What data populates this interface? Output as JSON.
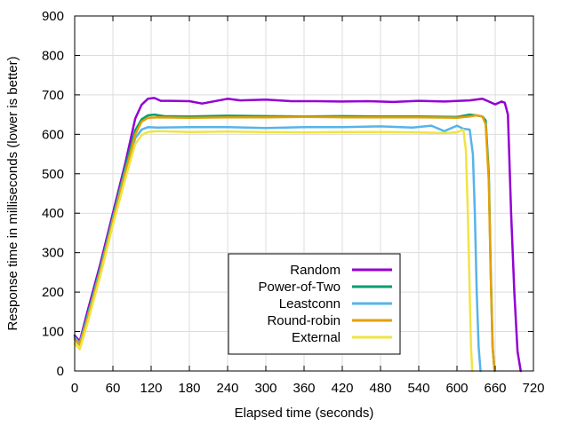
{
  "chart_data": {
    "type": "line",
    "xlabel": "Elapsed time (seconds)",
    "ylabel": "Response time in milliseconds (lower is better)",
    "xlim": [
      0,
      720
    ],
    "ylim": [
      0,
      900
    ],
    "xticks": [
      0,
      60,
      120,
      180,
      240,
      300,
      360,
      420,
      480,
      540,
      600,
      660,
      720
    ],
    "yticks": [
      0,
      100,
      200,
      300,
      400,
      500,
      600,
      700,
      800,
      900
    ],
    "grid": true,
    "legend_position": "bottom-center",
    "series": [
      {
        "name": "Random",
        "color": "#9400d3",
        "x": [
          0,
          8,
          20,
          40,
          60,
          80,
          95,
          105,
          115,
          125,
          135,
          150,
          180,
          200,
          240,
          260,
          300,
          340,
          380,
          420,
          460,
          500,
          540,
          580,
          620,
          640,
          650,
          660,
          670,
          675,
          680,
          685,
          690,
          695,
          700
        ],
        "y": [
          90,
          75,
          150,
          270,
          400,
          530,
          640,
          675,
          690,
          692,
          685,
          685,
          684,
          678,
          690,
          686,
          688,
          684,
          684,
          683,
          684,
          682,
          685,
          683,
          686,
          690,
          683,
          676,
          683,
          680,
          650,
          400,
          200,
          50,
          0
        ]
      },
      {
        "name": "Power-of-Two",
        "color": "#009e73",
        "x": [
          0,
          8,
          20,
          40,
          60,
          80,
          95,
          105,
          115,
          125,
          140,
          180,
          240,
          300,
          360,
          420,
          480,
          540,
          600,
          620,
          630,
          640,
          645,
          650,
          653,
          656,
          659
        ],
        "y": [
          85,
          70,
          140,
          260,
          390,
          520,
          610,
          638,
          648,
          650,
          646,
          645,
          647,
          646,
          645,
          646,
          645,
          645,
          644,
          650,
          648,
          645,
          635,
          500,
          250,
          60,
          0
        ]
      },
      {
        "name": "Leastconn",
        "color": "#56b4e9",
        "x": [
          0,
          8,
          20,
          40,
          60,
          80,
          95,
          105,
          115,
          130,
          180,
          240,
          300,
          360,
          420,
          480,
          530,
          560,
          580,
          600,
          610,
          620,
          625,
          628,
          631,
          634,
          637
        ],
        "y": [
          85,
          70,
          135,
          255,
          385,
          510,
          590,
          612,
          618,
          617,
          618,
          618,
          616,
          618,
          618,
          620,
          617,
          622,
          608,
          622,
          614,
          612,
          550,
          400,
          200,
          60,
          0
        ]
      },
      {
        "name": "Round-robin",
        "color": "#e69f00",
        "x": [
          0,
          8,
          20,
          40,
          60,
          80,
          95,
          105,
          115,
          130,
          180,
          240,
          300,
          360,
          420,
          480,
          540,
          600,
          620,
          630,
          640,
          645,
          650,
          653,
          656,
          659
        ],
        "y": [
          80,
          65,
          130,
          250,
          380,
          505,
          600,
          632,
          642,
          643,
          642,
          643,
          643,
          644,
          643,
          643,
          643,
          642,
          645,
          648,
          645,
          625,
          480,
          240,
          60,
          0
        ]
      },
      {
        "name": "External",
        "color": "#f0e442",
        "x": [
          0,
          8,
          20,
          40,
          60,
          80,
          95,
          105,
          115,
          130,
          180,
          240,
          300,
          360,
          420,
          480,
          540,
          580,
          600,
          610,
          614,
          617,
          620,
          622,
          624
        ],
        "y": [
          70,
          55,
          120,
          240,
          370,
          490,
          575,
          598,
          606,
          608,
          606,
          607,
          606,
          605,
          606,
          606,
          605,
          603,
          605,
          612,
          560,
          400,
          200,
          60,
          0
        ]
      }
    ]
  }
}
